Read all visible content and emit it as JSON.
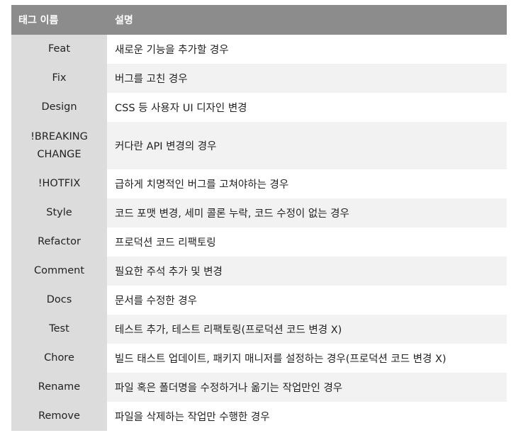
{
  "table": {
    "headers": {
      "tag": "태그 이름",
      "description": "설명"
    },
    "rows": [
      {
        "tag": "Feat",
        "description": "새로운 기능을 추가할 경우"
      },
      {
        "tag": "Fix",
        "description": "버그를 고친 경우"
      },
      {
        "tag": "Design",
        "description": "CSS 등 사용자 UI 디자인 변경"
      },
      {
        "tag": "!BREAKING CHANGE",
        "description": "커다란 API 변경의 경우"
      },
      {
        "tag": "!HOTFIX",
        "description": "급하게 치명적인 버그를 고쳐야하는 경우"
      },
      {
        "tag": "Style",
        "description": "코드 포맷 변경, 세미 콜론 누락, 코드 수정이 없는 경우"
      },
      {
        "tag": "Refactor",
        "description": "프로덕션 코드 리팩토링"
      },
      {
        "tag": "Comment",
        "description": "필요한 주석 추가 및 변경"
      },
      {
        "tag": "Docs",
        "description": "문서를 수정한 경우"
      },
      {
        "tag": "Test",
        "description": "테스트 추가, 테스트 리팩토링(프로덕션 코드 변경 X)"
      },
      {
        "tag": "Chore",
        "description": "빌드 태스트 업데이트, 패키지 매니저를 설정하는 경우(프로덕션 코드 변경 X)"
      },
      {
        "tag": "Rename",
        "description": "파일 혹은 폴더명을 수정하거나 옮기는 작업만인 경우"
      },
      {
        "tag": "Remove",
        "description": "파일을 삭제하는 작업만 수행한 경우"
      }
    ]
  },
  "colors": {
    "header_bg": "#8c8c8c",
    "tag_col_bg": "#dcdcdc",
    "stripe_bg": "#f2f2f2"
  }
}
